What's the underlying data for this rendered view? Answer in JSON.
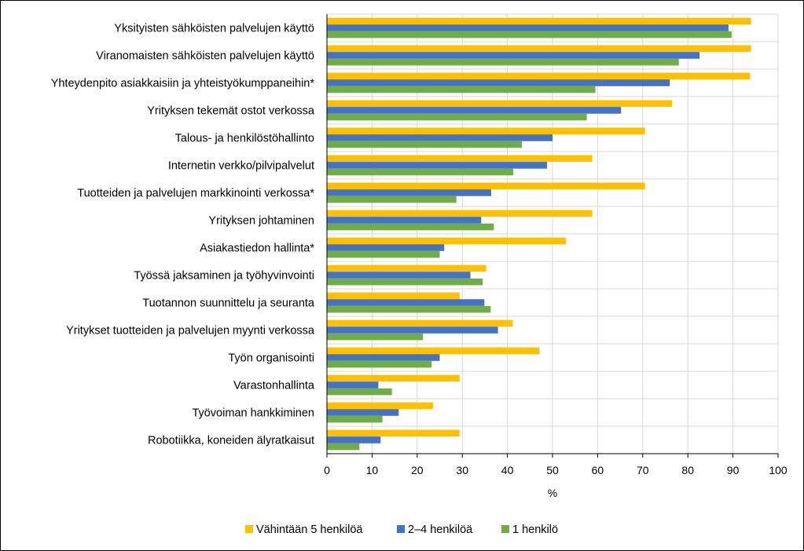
{
  "chart_data": {
    "type": "bar",
    "orientation": "horizontal",
    "title": "",
    "xlabel": "%",
    "ylabel": "",
    "xlim": [
      0,
      100
    ],
    "x_ticks": [
      0,
      10,
      20,
      30,
      40,
      50,
      60,
      70,
      80,
      90,
      100
    ],
    "grid": true,
    "legend_position": "bottom",
    "categories": [
      "Yksityisten sähköisten palvelujen käyttö",
      "Viranomaisten sähköisten palvelujen käyttö",
      "Yhteydenpito asiakkaisiin ja yhteistyökumppaneihin*",
      "Yrityksen tekemät ostot verkossa",
      "Talous- ja henkilöstöhallinto",
      "Internetin verkko/pilvipalvelut",
      "Tuotteiden ja palvelujen markkinointi verkossa*",
      "Yrityksen johtaminen",
      "Asiakastiedon hallinta*",
      "Työssä jaksaminen ja työhyvinvointi",
      "Tuotannon suunnittelu ja seuranta",
      "Yritykset tuotteiden ja palvelujen myynti verkossa",
      "Työn organisointi",
      "Varastonhallinta",
      "Työvoiman hankkiminen",
      "Robotiikka, koneiden älyratkaisut"
    ],
    "series": [
      {
        "name": "Vähintään 5 henkilöä",
        "color": "#FFC000",
        "values": [
          94,
          94,
          93.8,
          76.5,
          70.5,
          58.8,
          70.5,
          58.8,
          53,
          35.3,
          29.4,
          41.2,
          47.1,
          29.4,
          23.5,
          29.4
        ]
      },
      {
        "name": "2–4 henkilöä",
        "color": "#4472C4",
        "values": [
          89,
          82.6,
          76,
          65.2,
          50,
          48.8,
          36.4,
          34.2,
          26,
          31.8,
          34.9,
          37.9,
          25,
          11.4,
          15.9,
          11.9
        ]
      },
      {
        "name": "1 henkilö",
        "color": "#70AD47",
        "values": [
          89.7,
          78,
          59.5,
          57.6,
          43.2,
          41.3,
          28.7,
          37,
          25,
          34.5,
          36.3,
          21.3,
          23.2,
          14.4,
          12.3,
          7.2
        ]
      }
    ]
  }
}
